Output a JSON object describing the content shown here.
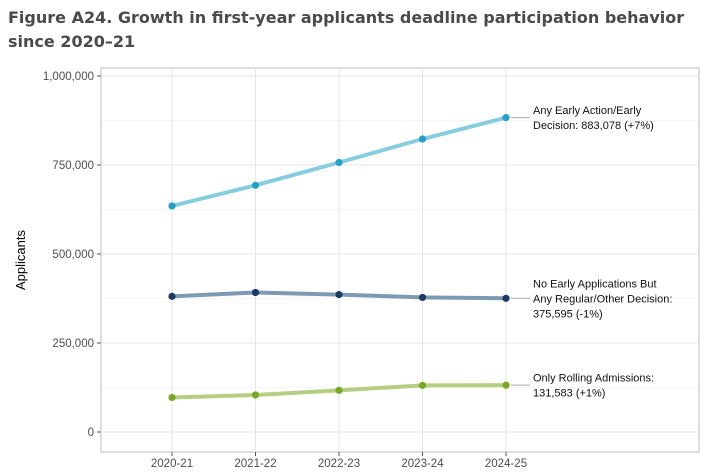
{
  "figure": {
    "title": "Figure A24. Growth in first-year applicants deadline participation behavior since 2020–21"
  },
  "chart_data": {
    "type": "line",
    "title": "Figure A24. Growth in first-year applicants deadline participation behavior since 2020–21",
    "xlabel": "",
    "ylabel": "Applicants",
    "categories": [
      "2020-21",
      "2021-22",
      "2022-23",
      "2023-24",
      "2024-25"
    ],
    "ylim": [
      0,
      1000000
    ],
    "yticks": [
      0,
      250000,
      500000,
      750000,
      1000000
    ],
    "ytick_labels": [
      "0",
      "250,000",
      "500,000",
      "750,000",
      "1,000,000"
    ],
    "grid": true,
    "legend": "direct labels at line ends",
    "series": [
      {
        "label_lines": [
          "Any Early Action/Early",
          "Decision: 883,078 (+7%)"
        ],
        "values": [
          635000,
          693000,
          757000,
          823000,
          883078
        ],
        "line_color": "#86cde0",
        "point_color": "#25a0c4"
      },
      {
        "label_lines": [
          "No Early Applications But",
          "Any Regular/Other Decision:",
          "375,595 (-1%)"
        ],
        "values": [
          381000,
          392000,
          386000,
          378000,
          375595
        ],
        "line_color": "#7d9ab5",
        "point_color": "#1b3a63"
      },
      {
        "label_lines": [
          "Only Rolling Admissions:",
          "131,583 (+1%)"
        ],
        "values": [
          97000,
          104000,
          117000,
          131000,
          131583
        ],
        "line_color": "#b5cf82",
        "point_color": "#7aa62a"
      }
    ]
  }
}
